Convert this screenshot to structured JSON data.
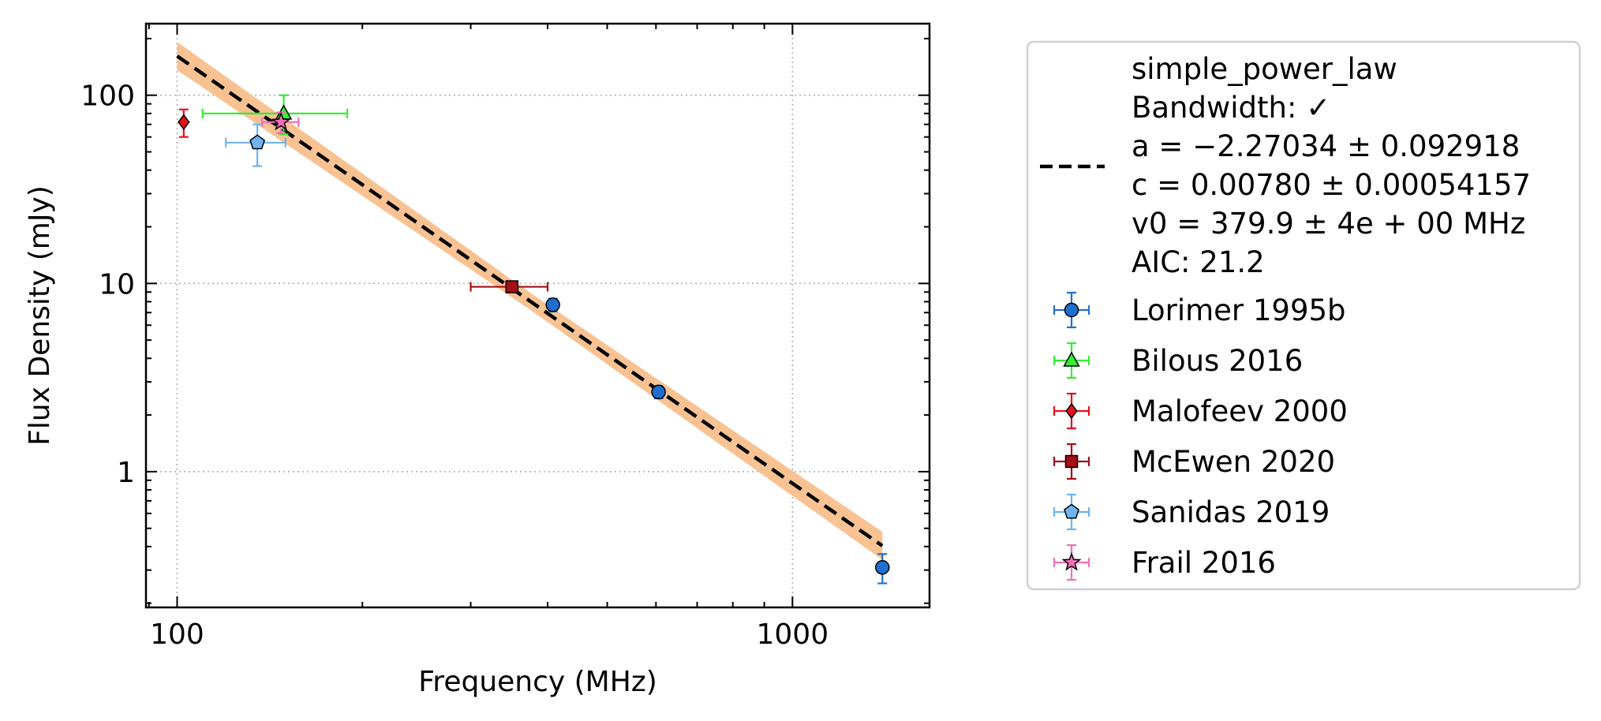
{
  "chart_data": {
    "type": "scatter",
    "xlabel": "Frequency (MHz)",
    "ylabel": "Flux Density (mJy)",
    "xscale": "log",
    "yscale": "log",
    "xlim": [
      89,
      1670
    ],
    "ylim": [
      0.19,
      240
    ],
    "grid": true,
    "legend_position": "outside-right",
    "x_ticks": [
      {
        "value": 100,
        "label": "100"
      },
      {
        "value": 1000,
        "label": "1000"
      }
    ],
    "y_ticks": [
      {
        "value": 1,
        "label": "1"
      },
      {
        "value": 10,
        "label": "10"
      },
      {
        "value": 100,
        "label": "100"
      }
    ],
    "fit": {
      "model": "simple_power_law",
      "bandwidth_label": "Bandwidth: ✓",
      "a_label": "a = −2.27034 ± 0.092918",
      "c_label": "c = 0.00780 ± 0.00054157",
      "v0_label": "v0 = 379.9 ± 4e + 00 MHz",
      "aic_label": "AIC: 21.2",
      "a": -2.27034,
      "c": 0.0078,
      "v0": 379.9,
      "x_range": [
        100,
        1400
      ],
      "line_color": "#000000",
      "band_color": "#f9bf8c",
      "band_halfwidth_decades": [
        0.045,
        0.075
      ]
    },
    "series": [
      {
        "name": "Lorimer 1995b",
        "marker": "circle",
        "color": "#1f6fd1",
        "points": [
          {
            "x": 408,
            "y": 7.7,
            "yerr": [
              0.6,
              0.6
            ]
          },
          {
            "x": 606,
            "y": 2.65,
            "yerr": [
              0.2,
              0.2
            ]
          },
          {
            "x": 1400,
            "y": 0.31,
            "yerr": [
              0.055,
              0.055
            ]
          }
        ]
      },
      {
        "name": "Bilous 2016",
        "marker": "triangle",
        "color": "#33ee33",
        "points": [
          {
            "x": 149,
            "y": 80,
            "xerr": [
              39,
              40
            ],
            "yerr": [
              18,
              20
            ]
          }
        ]
      },
      {
        "name": "Malofeev 2000",
        "marker": "diamond",
        "color": "#e8101a",
        "points": [
          {
            "x": 102.5,
            "y": 72,
            "yerr": [
              12,
              12
            ]
          }
        ]
      },
      {
        "name": "McEwen 2020",
        "marker": "square",
        "color": "#a50f15",
        "points": [
          {
            "x": 350,
            "y": 9.6,
            "xerr": [
              50,
              50
            ],
            "yerr": [
              0.4,
              0.4
            ]
          }
        ]
      },
      {
        "name": "Sanidas 2019",
        "marker": "pentagon",
        "color": "#6fb3ef",
        "points": [
          {
            "x": 135,
            "y": 56,
            "xerr": [
              15,
              15
            ],
            "yerr": [
              14,
              14
            ]
          }
        ]
      },
      {
        "name": "Frail 2016",
        "marker": "star",
        "color": "#f36fb6",
        "points": [
          {
            "x": 147.5,
            "y": 72,
            "xerr": [
              10,
              10
            ],
            "yerr": [
              9,
              9
            ]
          }
        ]
      }
    ]
  }
}
